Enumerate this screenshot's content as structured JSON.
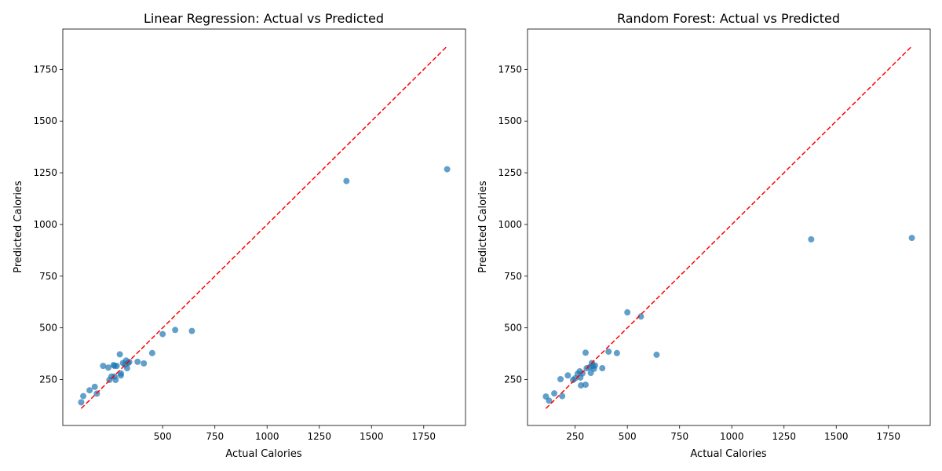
{
  "colors": {
    "point": "#1f77b4",
    "identity_line": "#ff0000",
    "axes": "#000000"
  },
  "chart_data": [
    {
      "type": "scatter",
      "title": "Linear Regression: Actual vs Predicted",
      "xlabel": "Actual Calories",
      "ylabel": "Predicted Calories",
      "xlim": [
        22,
        1950
      ],
      "ylim": [
        28,
        1945
      ],
      "xticks": [
        500,
        750,
        1000,
        1250,
        1500,
        1750
      ],
      "yticks": [
        250,
        500,
        750,
        1000,
        1250,
        1500,
        1750
      ],
      "reference_line": {
        "style": "dashed",
        "from": [
          110,
          110
        ],
        "to": [
          1862,
          1862
        ]
      },
      "x": [
        110,
        120,
        150,
        175,
        185,
        215,
        240,
        245,
        255,
        265,
        270,
        275,
        270,
        280,
        295,
        300,
        300,
        310,
        320,
        325,
        330,
        335,
        340,
        380,
        410,
        450,
        500,
        560,
        640,
        1380,
        1862
      ],
      "y": [
        140,
        170,
        198,
        215,
        182,
        316,
        308,
        248,
        265,
        320,
        316,
        248,
        265,
        316,
        372,
        270,
        280,
        330,
        322,
        342,
        305,
        330,
        335,
        336,
        328,
        378,
        470,
        490,
        485,
        1210,
        1267
      ]
    },
    {
      "type": "scatter",
      "title": "Random Forest: Actual vs Predicted",
      "xlabel": "Actual Calories",
      "ylabel": "Predicted Calories",
      "xlim": [
        22,
        1950
      ],
      "ylim": [
        28,
        1945
      ],
      "xticks": [
        250,
        500,
        750,
        1000,
        1250,
        1500,
        1750
      ],
      "yticks": [
        250,
        500,
        750,
        1000,
        1250,
        1500,
        1750
      ],
      "reference_line": {
        "style": "dashed",
        "from": [
          110,
          110
        ],
        "to": [
          1862,
          1862
        ]
      },
      "x": [
        110,
        125,
        150,
        180,
        188,
        215,
        240,
        250,
        262,
        272,
        275,
        278,
        285,
        300,
        300,
        305,
        320,
        325,
        330,
        335,
        340,
        345,
        380,
        410,
        450,
        500,
        565,
        640,
        1380,
        1862
      ],
      "y": [
        168,
        148,
        183,
        252,
        170,
        270,
        248,
        256,
        278,
        290,
        260,
        222,
        280,
        380,
        225,
        305,
        310,
        282,
        330,
        315,
        302,
        318,
        305,
        385,
        378,
        575,
        555,
        370,
        928,
        935
      ]
    }
  ]
}
